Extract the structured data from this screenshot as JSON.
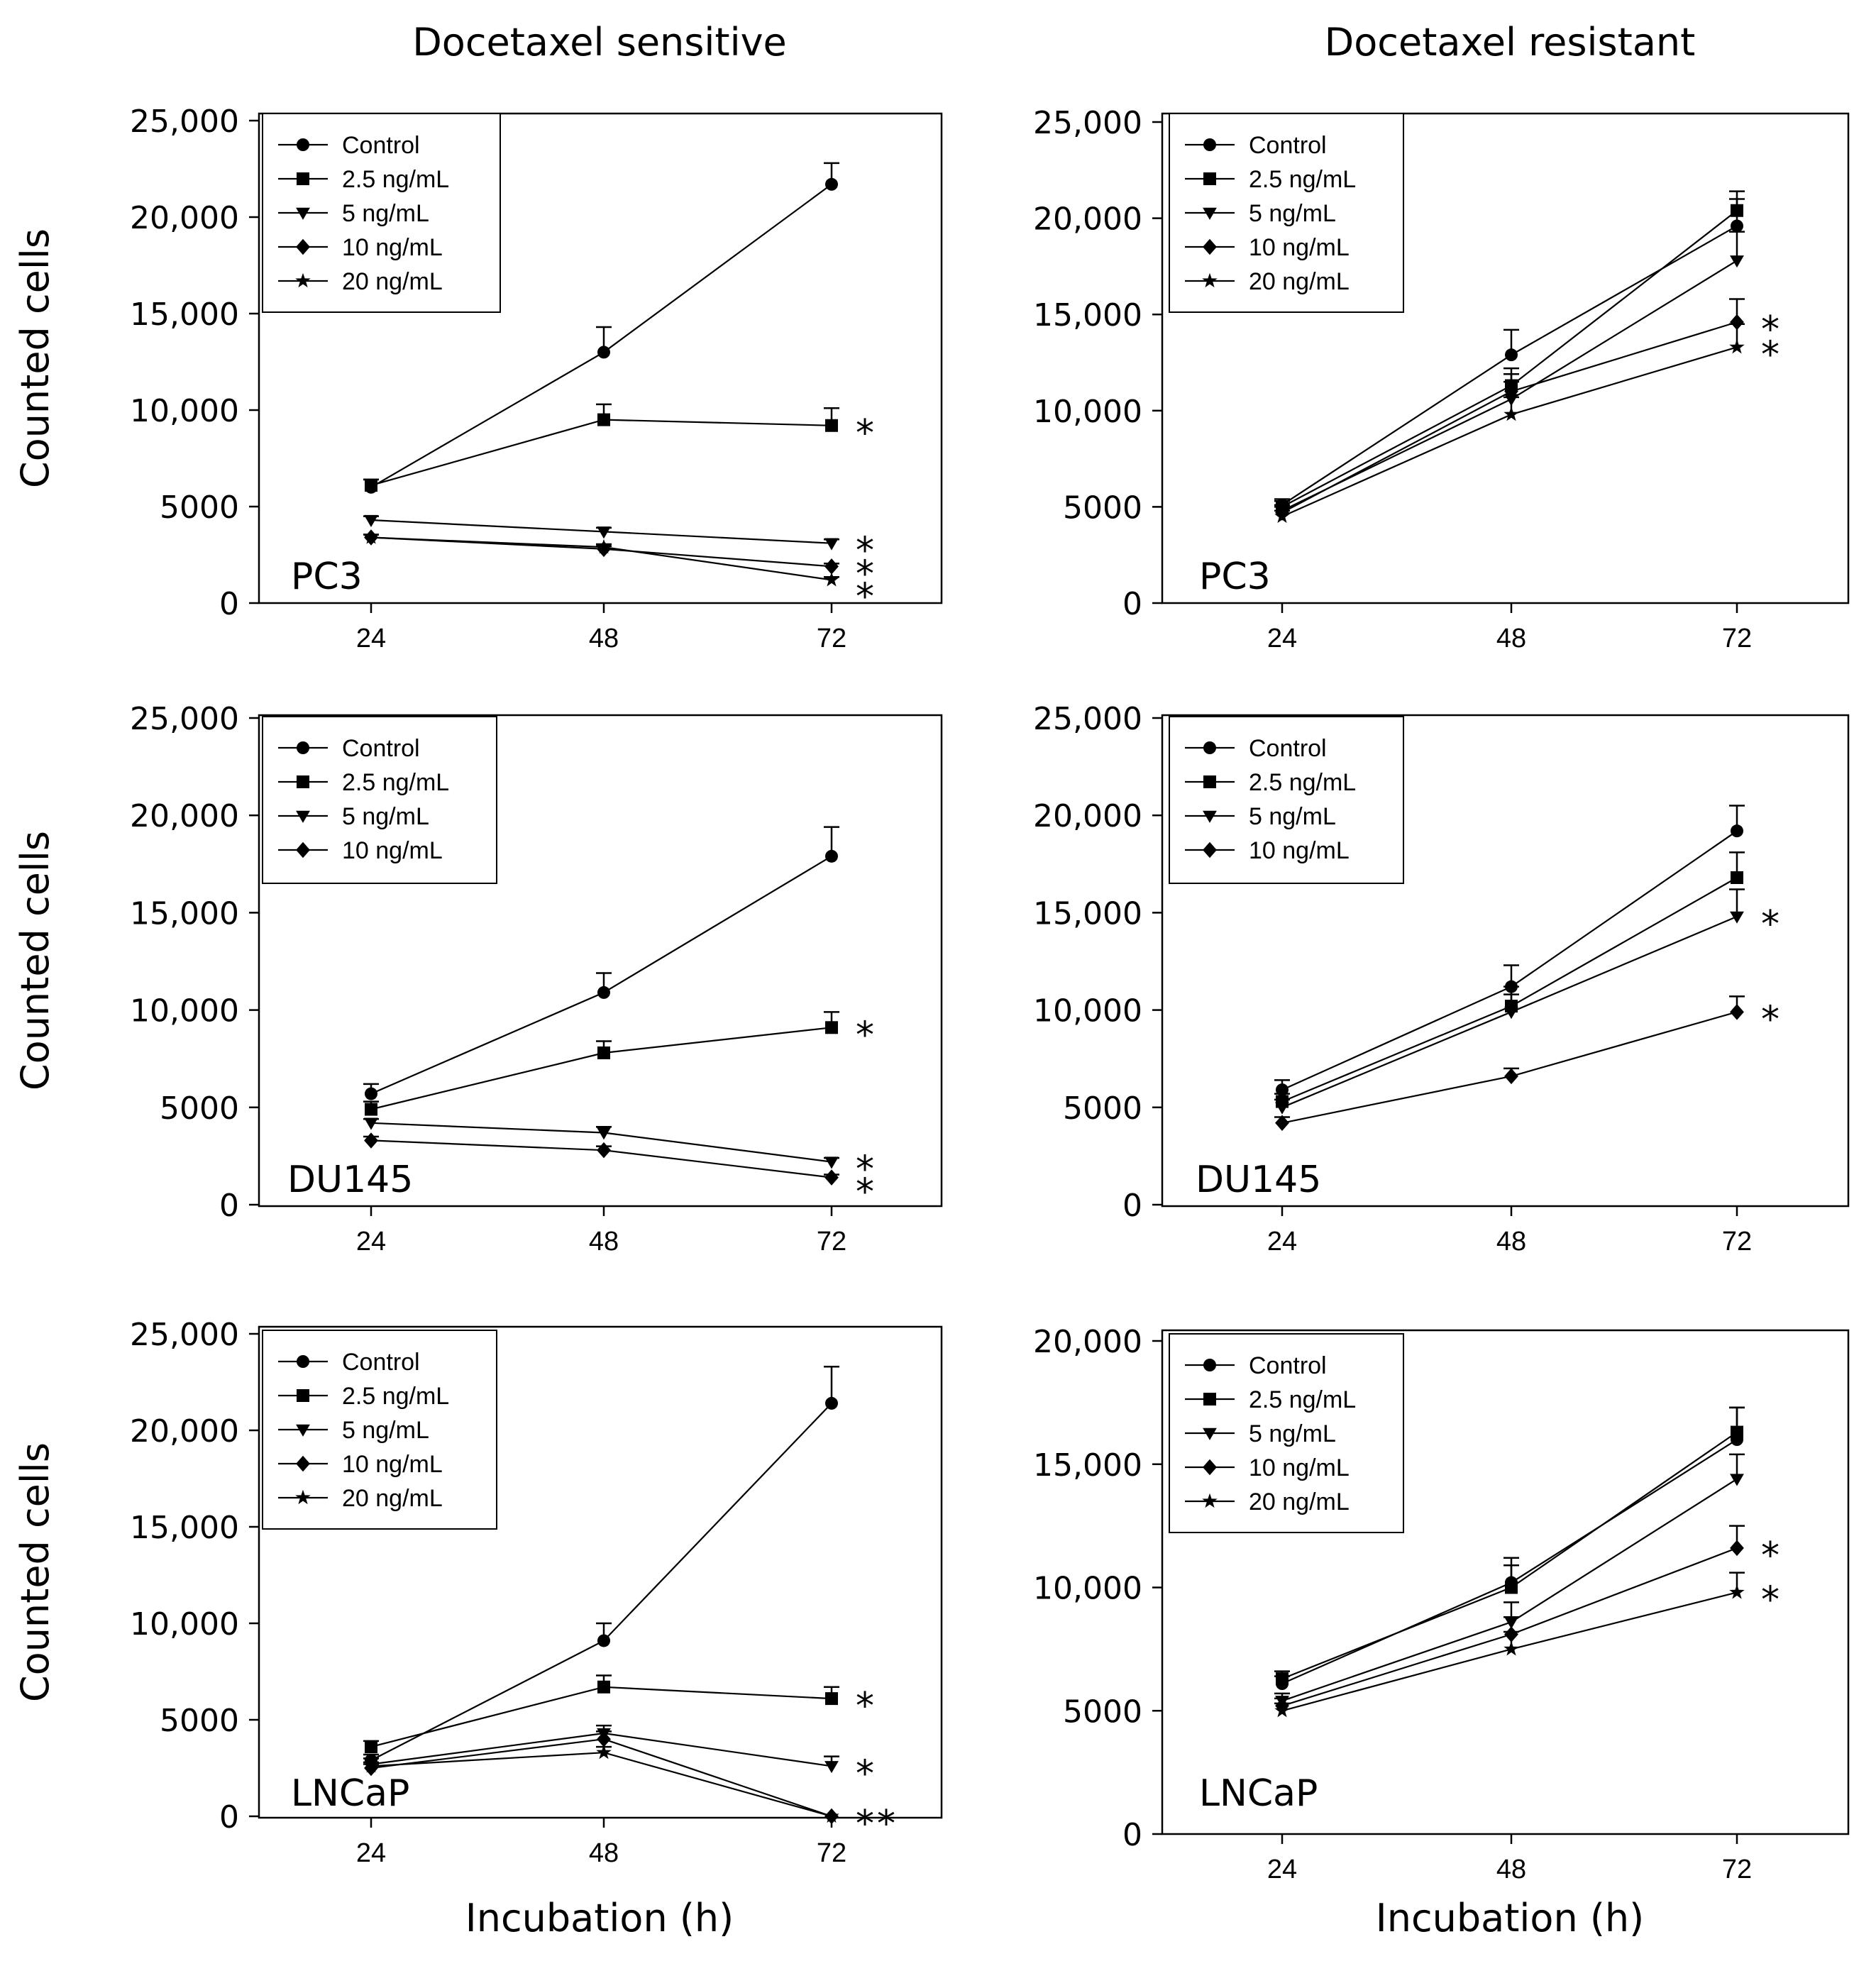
{
  "columns": [
    "Docetaxel sensitive",
    "Docetaxel resistant"
  ],
  "ylabel": "Counted cells",
  "xlabel": "Incubation (h)",
  "legend_labels": [
    "Control",
    "2.5 ng/mL",
    "5 ng/mL",
    "10 ng/mL",
    "20 ng/mL"
  ],
  "chart_data": [
    {
      "type": "line",
      "column": "Docetaxel sensitive",
      "cell_label": "PC3",
      "x": [
        24,
        48,
        72
      ],
      "xticks": [
        "24",
        "48",
        "72"
      ],
      "ylim": [
        0,
        25000
      ],
      "yticks": [
        "0",
        "5000",
        "10,000",
        "15,000",
        "20,000",
        "25,000"
      ],
      "ylabel": "Counted cells",
      "xlabel": "",
      "legend_position": "top-left",
      "series": [
        {
          "name": "Control",
          "marker": "circle",
          "values": [
            6000,
            13000,
            21700
          ],
          "errors": [
            400,
            1300,
            1100
          ]
        },
        {
          "name": "2.5 ng/mL",
          "marker": "square",
          "values": [
            6100,
            9500,
            9200
          ],
          "errors": [
            300,
            800,
            900
          ],
          "significance": "*"
        },
        {
          "name": "5 ng/mL",
          "marker": "triangle-down",
          "values": [
            4300,
            3700,
            3100
          ],
          "errors": [
            200,
            200,
            200
          ],
          "significance": "*"
        },
        {
          "name": "10 ng/mL",
          "marker": "diamond",
          "values": [
            3400,
            2800,
            1900
          ],
          "errors": [
            150,
            150,
            150
          ],
          "significance": "*"
        },
        {
          "name": "20 ng/mL",
          "marker": "star",
          "values": [
            3400,
            2900,
            1200
          ],
          "errors": [
            150,
            150,
            150
          ],
          "significance": "*"
        }
      ]
    },
    {
      "type": "line",
      "column": "Docetaxel resistant",
      "cell_label": "PC3",
      "x": [
        24,
        48,
        72
      ],
      "xticks": [
        "24",
        "48",
        "72"
      ],
      "ylim": [
        0,
        25000
      ],
      "yticks": [
        "0",
        "5000",
        "10,000",
        "15,000",
        "20,000",
        "25,000"
      ],
      "ylabel": "",
      "xlabel": "",
      "legend_position": "top-left",
      "series": [
        {
          "name": "Control",
          "marker": "circle",
          "values": [
            5100,
            12900,
            19600
          ],
          "errors": [
            300,
            1300,
            1400
          ]
        },
        {
          "name": "2.5 ng/mL",
          "marker": "square",
          "values": [
            5000,
            11300,
            20400
          ],
          "errors": [
            300,
            900,
            1000
          ]
        },
        {
          "name": "5 ng/mL",
          "marker": "triangle-down",
          "values": [
            4800,
            10600,
            17800
          ],
          "errors": [
            300,
            900,
            1500
          ]
        },
        {
          "name": "10 ng/mL",
          "marker": "diamond",
          "values": [
            4700,
            11000,
            14600
          ],
          "errors": [
            300,
            900,
            1200
          ],
          "significance": "*"
        },
        {
          "name": "20 ng/mL",
          "marker": "star",
          "values": [
            4500,
            9800,
            13300
          ],
          "errors": [
            300,
            900,
            1200
          ],
          "significance": "*"
        }
      ]
    },
    {
      "type": "line",
      "column": "Docetaxel sensitive",
      "cell_label": "DU145",
      "x": [
        24,
        48,
        72
      ],
      "xticks": [
        "24",
        "48",
        "72"
      ],
      "ylim": [
        0,
        25000
      ],
      "yticks": [
        "0",
        "5000",
        "10,000",
        "15,000",
        "20,000",
        "25,000"
      ],
      "ylabel": "Counted cells",
      "xlabel": "",
      "legend_position": "top-left",
      "series": [
        {
          "name": "Control",
          "marker": "circle",
          "values": [
            5700,
            10900,
            17900
          ],
          "errors": [
            500,
            1000,
            1500
          ]
        },
        {
          "name": "2.5 ng/mL",
          "marker": "square",
          "values": [
            4900,
            7800,
            9100
          ],
          "errors": [
            400,
            600,
            800
          ],
          "significance": "*"
        },
        {
          "name": "5 ng/mL",
          "marker": "triangle-down",
          "values": [
            4200,
            3700,
            2200
          ],
          "errors": [
            200,
            300,
            200
          ],
          "significance": "*"
        },
        {
          "name": "10 ng/mL",
          "marker": "diamond",
          "values": [
            3300,
            2800,
            1400
          ],
          "errors": [
            200,
            200,
            150
          ],
          "significance": "*"
        }
      ]
    },
    {
      "type": "line",
      "column": "Docetaxel resistant",
      "cell_label": "DU145",
      "x": [
        24,
        48,
        72
      ],
      "xticks": [
        "24",
        "48",
        "72"
      ],
      "ylim": [
        0,
        25000
      ],
      "yticks": [
        "0",
        "5000",
        "10,000",
        "15,000",
        "20,000",
        "25,000"
      ],
      "ylabel": "",
      "xlabel": "",
      "legend_position": "top-left",
      "series": [
        {
          "name": "Control",
          "marker": "circle",
          "values": [
            5900,
            11200,
            19200
          ],
          "errors": [
            500,
            1100,
            1300
          ]
        },
        {
          "name": "2.5 ng/mL",
          "marker": "square",
          "values": [
            5300,
            10200,
            16800
          ],
          "errors": [
            400,
            1000,
            1300
          ]
        },
        {
          "name": "5 ng/mL",
          "marker": "triangle-down",
          "values": [
            5000,
            9900,
            14800
          ],
          "errors": [
            400,
            900,
            1400
          ],
          "significance": "*"
        },
        {
          "name": "10 ng/mL",
          "marker": "diamond",
          "values": [
            4200,
            6600,
            9900
          ],
          "errors": [
            300,
            400,
            800
          ],
          "significance": "*"
        }
      ]
    },
    {
      "type": "line",
      "column": "Docetaxel sensitive",
      "cell_label": "LNCaP",
      "x": [
        24,
        48,
        72
      ],
      "xticks": [
        "24",
        "48",
        "72"
      ],
      "ylim": [
        0,
        25000
      ],
      "yticks": [
        "0",
        "5000",
        "10,000",
        "15,000",
        "20,000",
        "25,000"
      ],
      "ylabel": "Counted cells",
      "xlabel": "Incubation (h)",
      "legend_position": "top-left",
      "series": [
        {
          "name": "Control",
          "marker": "circle",
          "values": [
            2900,
            9100,
            21400
          ],
          "errors": [
            300,
            900,
            1900
          ]
        },
        {
          "name": "2.5 ng/mL",
          "marker": "square",
          "values": [
            3600,
            6700,
            6100
          ],
          "errors": [
            300,
            600,
            600
          ],
          "significance": "*"
        },
        {
          "name": "5 ng/mL",
          "marker": "triangle-down",
          "values": [
            2700,
            4300,
            2600
          ],
          "errors": [
            300,
            400,
            500
          ],
          "significance": "*"
        },
        {
          "name": "10 ng/mL",
          "marker": "diamond",
          "values": [
            2500,
            4000,
            0
          ],
          "errors": [
            200,
            400,
            0
          ],
          "significance": "*"
        },
        {
          "name": "20 ng/mL",
          "marker": "star",
          "values": [
            2600,
            3300,
            0
          ],
          "errors": [
            200,
            300,
            0
          ],
          "significance": "*"
        }
      ]
    },
    {
      "type": "line",
      "column": "Docetaxel resistant",
      "cell_label": "LNCaP",
      "x": [
        24,
        48,
        72
      ],
      "xticks": [
        "24",
        "48",
        "72"
      ],
      "ylim": [
        0,
        20000
      ],
      "yticks": [
        "0",
        "5000",
        "10,000",
        "15,000",
        "20,000"
      ],
      "ylabel": "",
      "xlabel": "Incubation (h)",
      "legend_position": "top-left",
      "series": [
        {
          "name": "Control",
          "marker": "circle",
          "values": [
            6100,
            10200,
            16000
          ],
          "errors": [
            300,
            1000,
            1300
          ]
        },
        {
          "name": "2.5 ng/mL",
          "marker": "square",
          "values": [
            6300,
            10000,
            16300
          ],
          "errors": [
            300,
            900,
            1000
          ]
        },
        {
          "name": "5 ng/mL",
          "marker": "triangle-down",
          "values": [
            5400,
            8600,
            14400
          ],
          "errors": [
            300,
            800,
            1000
          ]
        },
        {
          "name": "10 ng/mL",
          "marker": "diamond",
          "values": [
            5200,
            8100,
            11600
          ],
          "errors": [
            300,
            700,
            900
          ],
          "significance": "*"
        },
        {
          "name": "20 ng/mL",
          "marker": "star",
          "values": [
            5000,
            7500,
            9800
          ],
          "errors": [
            300,
            700,
            800
          ],
          "significance": "*"
        }
      ]
    }
  ]
}
